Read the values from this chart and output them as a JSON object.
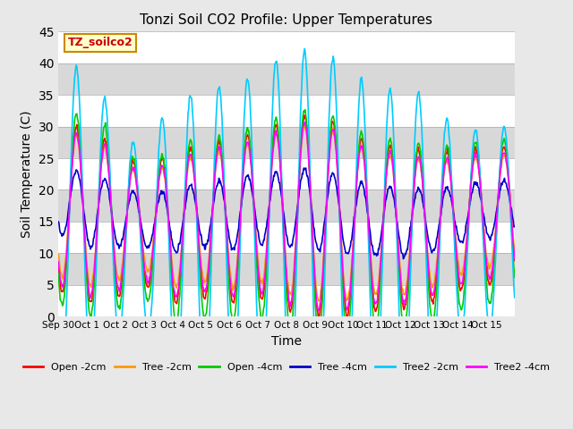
{
  "title": "Tonzi Soil CO2 Profile: Upper Temperatures",
  "xlabel": "Time",
  "ylabel": "Soil Temperature (C)",
  "ylim": [
    0,
    45
  ],
  "yticks": [
    0,
    5,
    10,
    15,
    20,
    25,
    30,
    35,
    40,
    45
  ],
  "background_color": "#e8e8e8",
  "legend_label": "TZ_soilco2",
  "series_colors": {
    "Open -2cm": "#ff0000",
    "Tree -2cm": "#ff9900",
    "Open -4cm": "#00cc00",
    "Tree -4cm": "#0000cc",
    "Tree2 -2cm": "#00ccff",
    "Tree2 -4cm": "#ff00ff"
  },
  "x_tick_positions": [
    0,
    1,
    2,
    3,
    4,
    5,
    6,
    7,
    8,
    9,
    10,
    11,
    12,
    13,
    14,
    15,
    16
  ],
  "x_tick_labels": [
    "Sep 30",
    "Oct 1",
    "Oct 2",
    "Oct 3",
    "Oct 4",
    "Oct 5",
    "Oct 6",
    "Oct 7",
    "Oct 8",
    "Oct 9",
    "Oct 10",
    "Oct 11",
    "Oct 12",
    "Oct 13",
    "Oct 14",
    "Oct 15",
    ""
  ],
  "n_days": 16,
  "samples_per_day": 48
}
